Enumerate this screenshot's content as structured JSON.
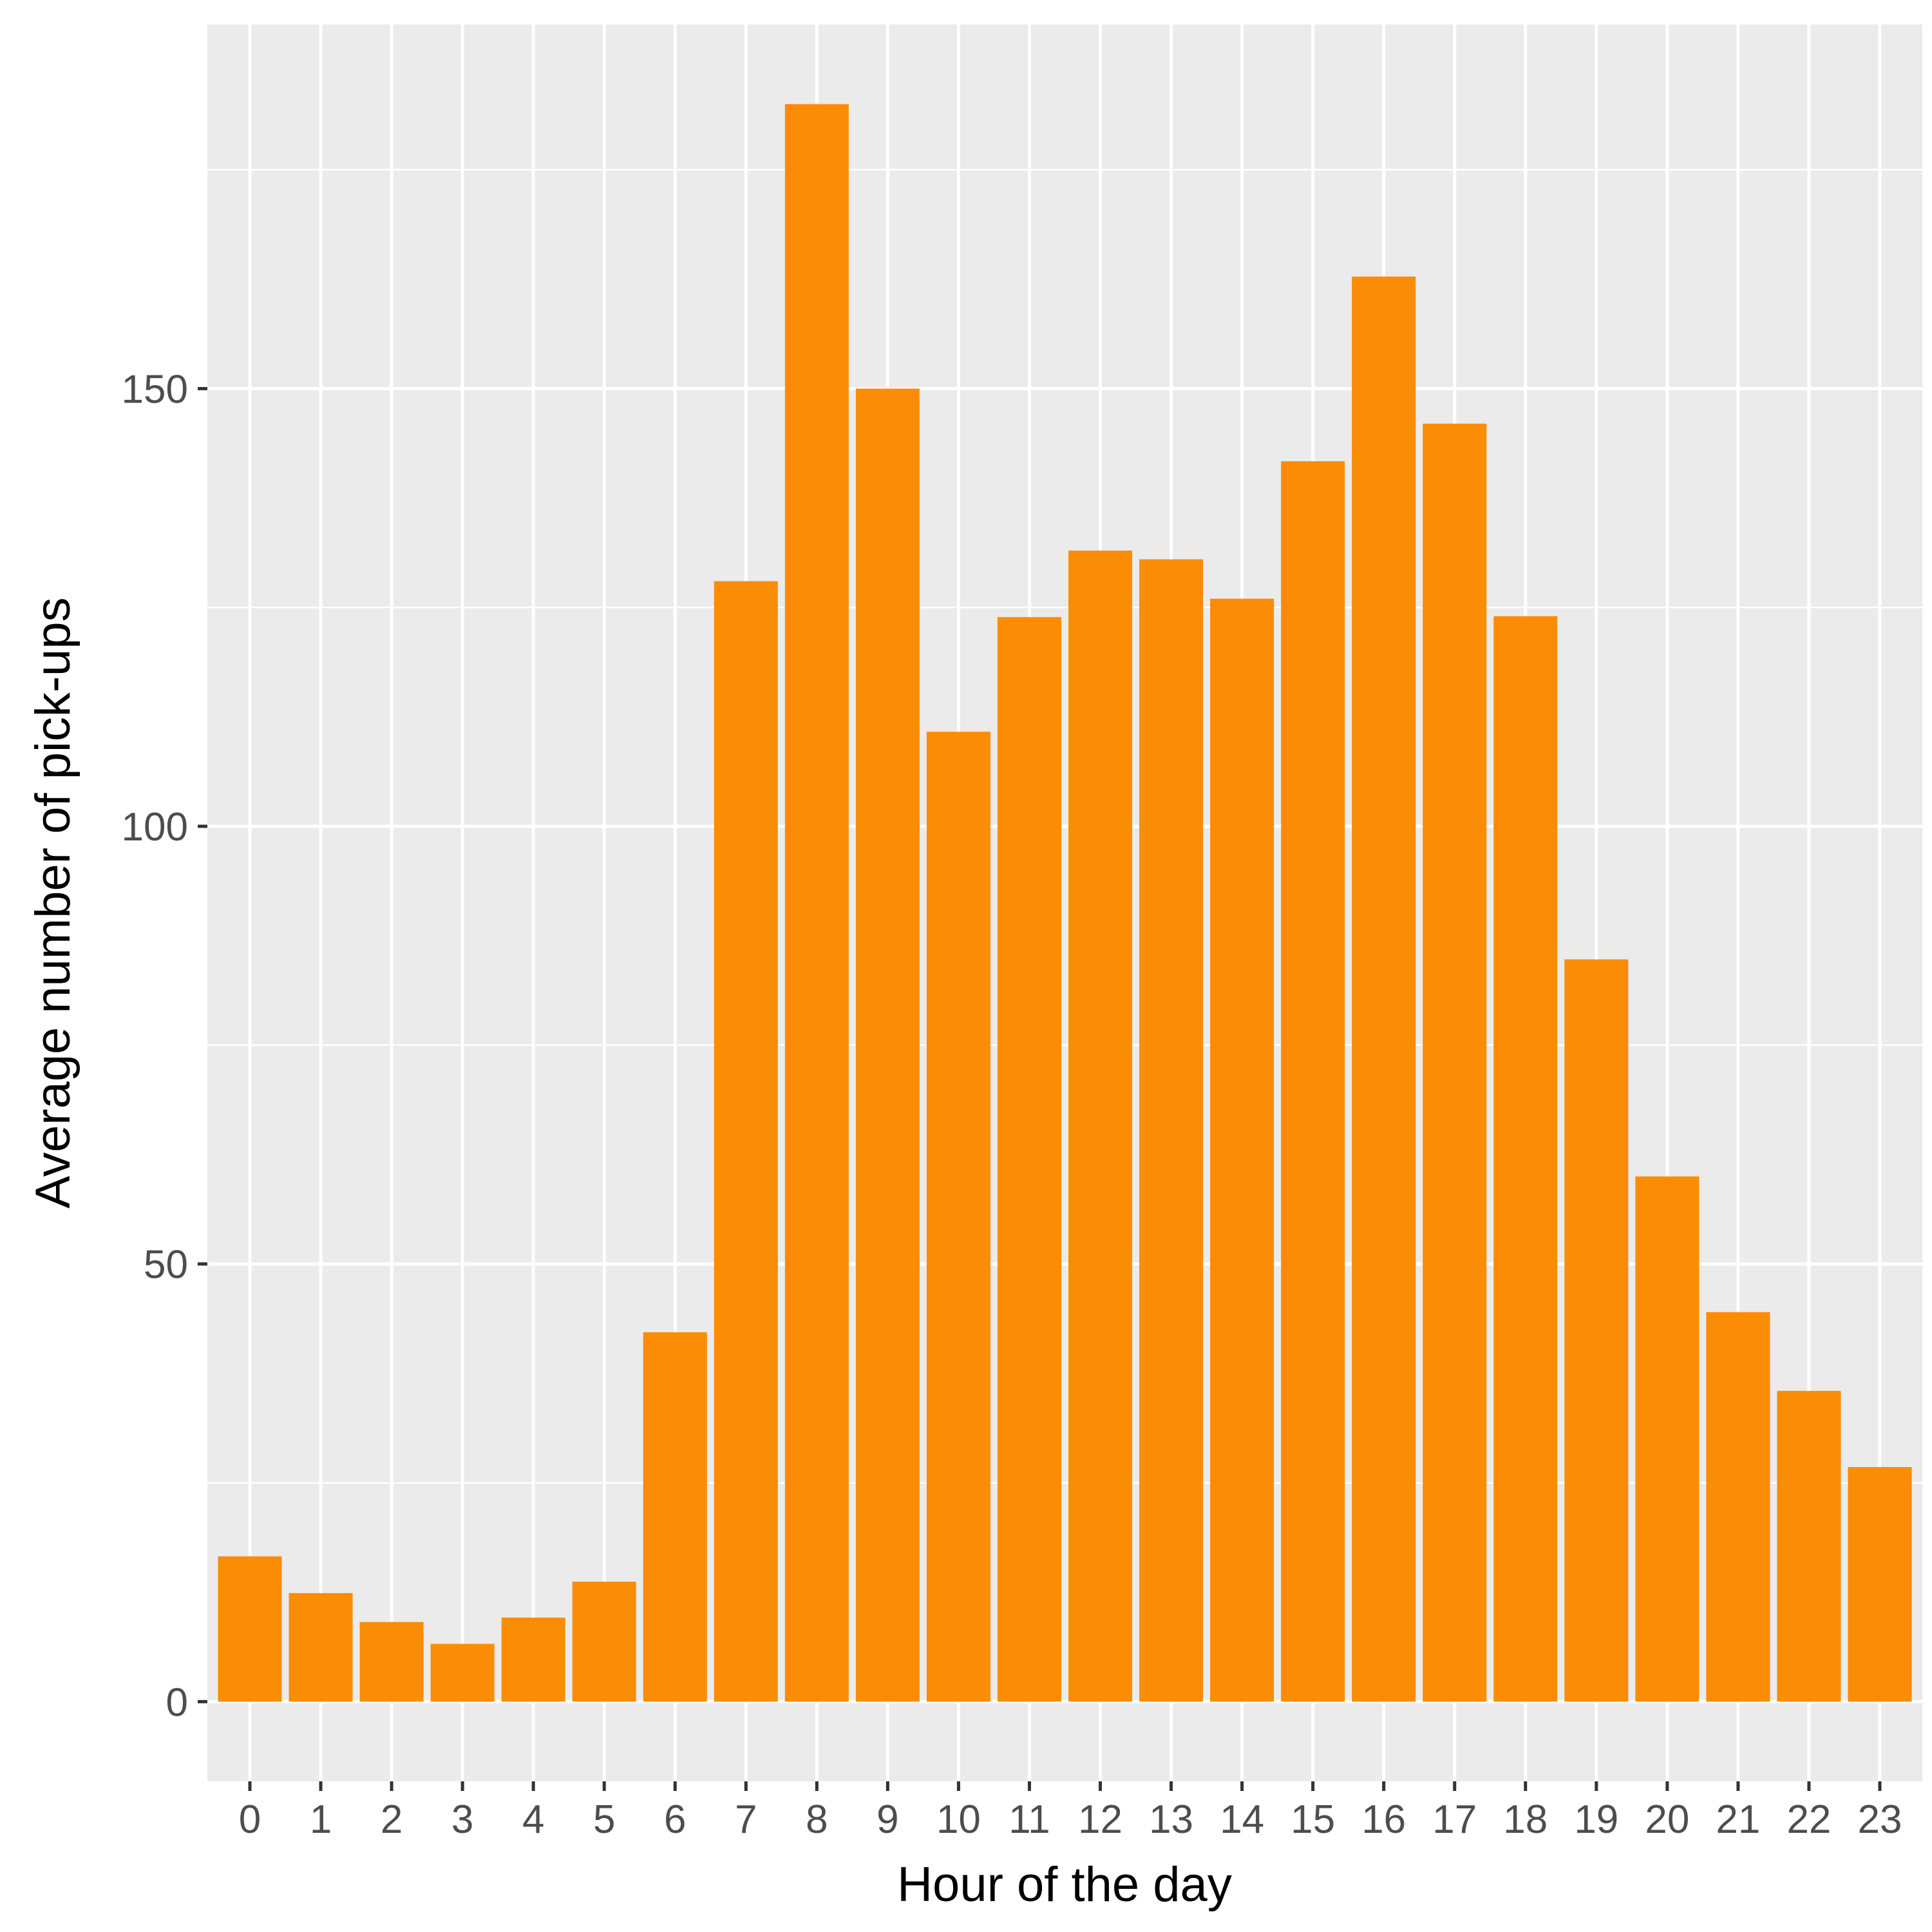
{
  "chart_data": {
    "type": "bar",
    "title": "",
    "xlabel": "Hour of the day",
    "ylabel": "Average number of pick-ups",
    "categories": [
      "0",
      "1",
      "2",
      "3",
      "4",
      "5",
      "6",
      "7",
      "8",
      "9",
      "10",
      "11",
      "12",
      "13",
      "14",
      "15",
      "16",
      "17",
      "18",
      "19",
      "20",
      "21",
      "22",
      "23"
    ],
    "values": [
      16.6,
      12.4,
      9.1,
      6.6,
      9.6,
      13.7,
      42.2,
      128,
      182.5,
      150,
      110.8,
      123.9,
      131.5,
      130.5,
      126,
      141.7,
      162.8,
      146,
      124,
      84.8,
      60,
      44.5,
      35.5,
      26.8
    ],
    "y_ticks": [
      0,
      50,
      100,
      150
    ],
    "y_tick_labels": [
      "0",
      "50",
      "100",
      "150"
    ],
    "ylim": [
      -9.1,
      191.6
    ],
    "grid": true,
    "legend": "none",
    "colors": {
      "bar": "#FB8C06",
      "panel": "#EBEBEB",
      "grid": "#FFFFFF",
      "tick_text": "#4D4D4D",
      "tick_mark": "#333333"
    }
  }
}
